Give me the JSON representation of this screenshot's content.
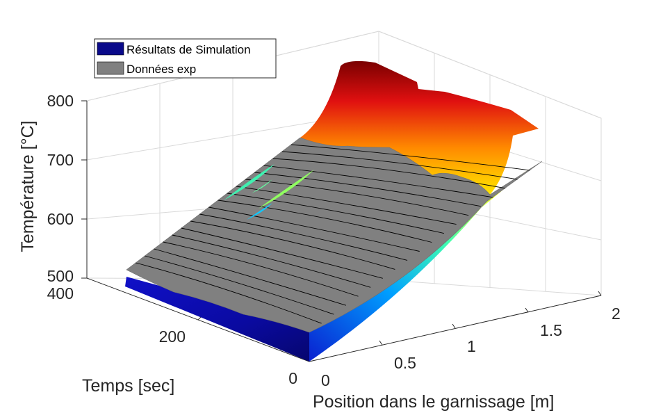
{
  "chart_data": {
    "type": "surface3d",
    "title": "",
    "xlabel": "Position dans le garnissage [m]",
    "ylabel": "Temps [sec]",
    "zlabel": "Température [°C]",
    "x_ticks": [
      "0",
      "0.5",
      "1",
      "1.5",
      "2"
    ],
    "y_ticks": [
      "0",
      "200",
      "400"
    ],
    "z_ticks": [
      "500",
      "600",
      "700",
      "800"
    ],
    "xlim": [
      0,
      2
    ],
    "ylim": [
      0,
      400
    ],
    "zlim": [
      500,
      800
    ],
    "grid": true,
    "legend_position": "top-left",
    "legend": [
      {
        "label": "Résultats de Simulation",
        "color": "#0a0a8a"
      },
      {
        "label": "Données exp",
        "color": "#808080"
      }
    ],
    "series": [
      {
        "name": "Résultats de Simulation",
        "colormap": "jet"
      },
      {
        "name": "Données exp",
        "color": "#808080"
      }
    ]
  }
}
